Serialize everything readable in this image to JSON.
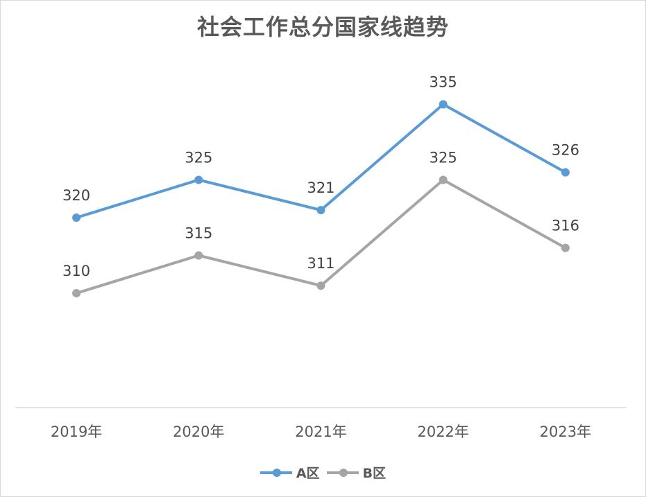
{
  "chart_data": {
    "type": "line",
    "title": "社会工作总分国家线趋势",
    "categories": [
      "2019年",
      "2020年",
      "2021年",
      "2022年",
      "2023年"
    ],
    "series": [
      {
        "name": "A区",
        "values": [
          320,
          325,
          321,
          335,
          326
        ],
        "color": "#5b9bd5"
      },
      {
        "name": "B区",
        "values": [
          310,
          315,
          311,
          325,
          316
        ],
        "color": "#a5a5a5"
      }
    ],
    "xlabel": "",
    "ylabel": "",
    "y_axis_visible": false,
    "grid": false,
    "data_labels": true,
    "legend_position": "bottom"
  }
}
